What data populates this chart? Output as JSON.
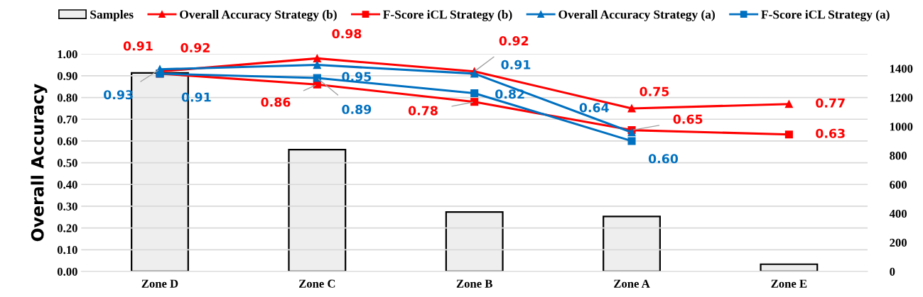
{
  "chart_data": {
    "type": "bar",
    "ylabel": "Overall Accuracy",
    "categories": [
      "Zone D",
      "Zone C",
      "Zone B",
      "Zone A",
      "Zone E"
    ],
    "ylim": [
      0,
      1.0
    ],
    "yticks": [
      {
        "value": 0,
        "label": "0.00"
      },
      {
        "value": 0.1,
        "label": "0.10"
      },
      {
        "value": 0.2,
        "label": "0.20"
      },
      {
        "value": 0.3,
        "label": "0.30"
      },
      {
        "value": 0.4,
        "label": "0.40"
      },
      {
        "value": 0.5,
        "label": "0.50"
      },
      {
        "value": 0.6,
        "label": "0.60"
      },
      {
        "value": 0.7,
        "label": "0.70"
      },
      {
        "value": 0.8,
        "label": "0.80"
      },
      {
        "value": 0.9,
        "label": "0.90"
      },
      {
        "value": 1.0,
        "label": "1.00"
      }
    ],
    "y2lim": [
      0,
      1500
    ],
    "y2ticks": [
      0,
      200,
      400,
      600,
      800,
      1000,
      1200,
      1400
    ],
    "grid": "y",
    "legend": "top",
    "series": [
      {
        "name": "Samples",
        "axis": "y2",
        "color": "#eeeeee",
        "values": [
          1370,
          840,
          410,
          380,
          50
        ]
      },
      {
        "name": "Overall Accuracy Strategy (b)",
        "type": "line",
        "marker": "triangle",
        "color": "#ff0000",
        "values": [
          0.92,
          0.98,
          0.92,
          0.75,
          0.77
        ],
        "value_labels": [
          "0.92",
          "0.98",
          "0.92",
          "0.75",
          "0.77"
        ]
      },
      {
        "name": "F-Score iCL Strategy (b)",
        "type": "line",
        "marker": "square",
        "color": "#ff0000",
        "values": [
          0.91,
          0.86,
          0.78,
          0.65,
          0.63
        ],
        "value_labels": [
          "0.91",
          "0.86",
          "0.78",
          "0.65",
          "0.63"
        ]
      },
      {
        "name": "Overall Accuracy Strategy (a)",
        "type": "line",
        "marker": "triangle",
        "color": "#0070c0",
        "values": [
          0.93,
          0.95,
          0.91,
          0.64,
          null
        ],
        "value_labels": [
          "0.93",
          "0.95",
          "0.91",
          "0.64",
          null
        ]
      },
      {
        "name": "F-Score iCL Strategy (a)",
        "type": "line",
        "marker": "square",
        "color": "#0070c0",
        "values": [
          0.91,
          0.89,
          0.82,
          0.6,
          null
        ],
        "value_labels": [
          "0.91",
          "0.89",
          "0.82",
          "0.60",
          null
        ]
      }
    ]
  }
}
